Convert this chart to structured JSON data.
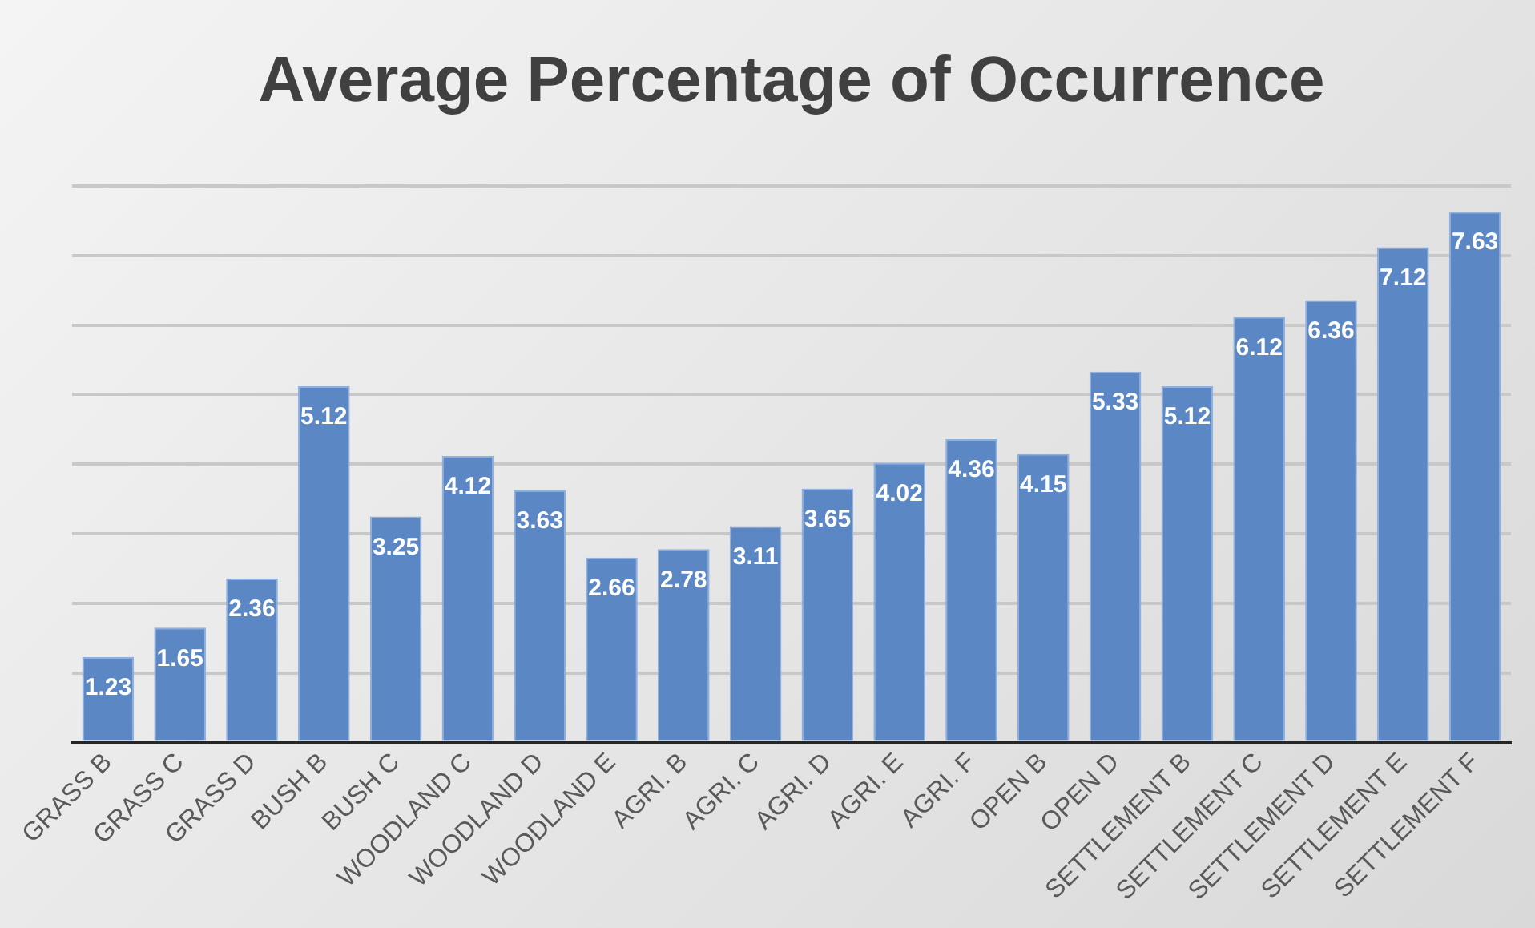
{
  "chart_data": {
    "type": "bar",
    "title": "Average Percentage of Occurrence",
    "categories": [
      "GRASS B",
      "GRASS C",
      "GRASS D",
      "BUSH B",
      "BUSH C",
      "WOODLAND C",
      "WOODLAND D",
      "WOODLAND E",
      "AGRI. B",
      "AGRI. C",
      "AGRI. D",
      "AGRI. E",
      "AGRI. F",
      "OPEN B",
      "OPEN D",
      "SETTLEMENT B",
      "SETTLEMENT C",
      "SETTLEMENT D",
      "SETTLEMENT E",
      "SETTLEMENT F"
    ],
    "values": [
      1.23,
      1.65,
      2.36,
      5.12,
      3.25,
      4.12,
      3.63,
      2.66,
      2.78,
      3.11,
      3.65,
      4.02,
      4.36,
      4.15,
      5.33,
      5.12,
      6.12,
      6.36,
      7.12,
      7.63
    ],
    "color": "#5b87c4",
    "grid": "y",
    "tick_labels": "x",
    "data_labels": true,
    "legend": false
  }
}
